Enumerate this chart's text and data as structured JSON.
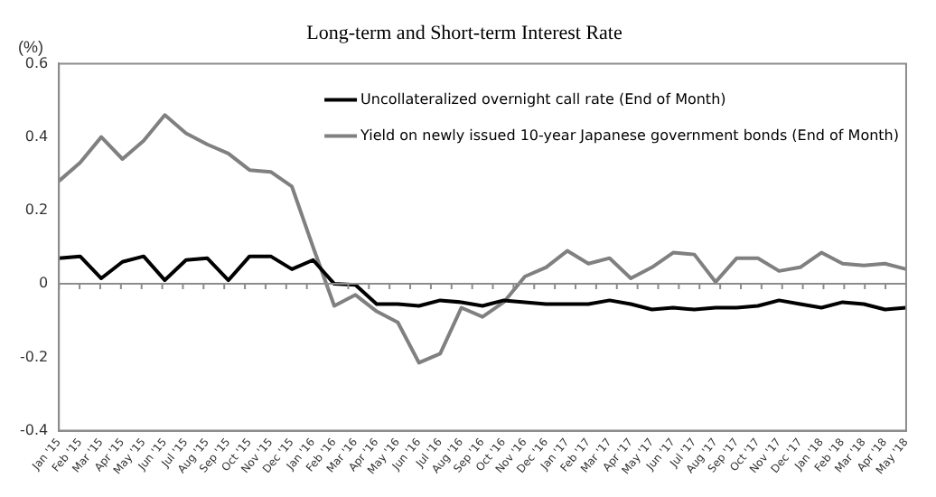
{
  "chart_data": {
    "type": "line",
    "title": "Long-term and Short-term Interest Rate",
    "ylabel": "(%)",
    "categories": [
      "Jan '15",
      "Feb '15",
      "Mar '15",
      "Apr '15",
      "May '15",
      "Jun '15",
      "Jul '15",
      "Aug '15",
      "Sep '15",
      "Oct '15",
      "Nov '15",
      "Dec '15",
      "Jan '16",
      "Feb '16",
      "Mar '16",
      "Apr '16",
      "May '16",
      "Jun '16",
      "Jul '16",
      "Aug '16",
      "Sep '16",
      "Oct '16",
      "Nov '16",
      "Dec '16",
      "Jan '17",
      "Feb '17",
      "Mar '17",
      "Apr '17",
      "May '17",
      "Jun '17",
      "Jul '17",
      "Aug '17",
      "Sep '17",
      "Oct '17",
      "Nov '17",
      "Dec '17",
      "Jan '18",
      "Feb '18",
      "Mar '18",
      "Apr '18",
      "May '18"
    ],
    "series": [
      {
        "name": "Uncollateralized overnight call rate (End of Month)",
        "color": "#000000",
        "values": [
          0.07,
          0.075,
          0.015,
          0.06,
          0.075,
          0.01,
          0.065,
          0.07,
          0.01,
          0.075,
          0.075,
          0.04,
          0.065,
          0.0,
          -0.003,
          -0.055,
          -0.055,
          -0.06,
          -0.045,
          -0.05,
          -0.06,
          -0.045,
          -0.05,
          -0.055,
          -0.055,
          -0.055,
          -0.045,
          -0.055,
          -0.07,
          -0.065,
          -0.07,
          -0.065,
          -0.065,
          -0.06,
          -0.045,
          -0.055,
          -0.065,
          -0.05,
          -0.055,
          -0.07,
          -0.065
        ]
      },
      {
        "name": "Yield on newly issued 10-year Japanese government bonds (End of Month)",
        "color": "#808080",
        "values": [
          0.28,
          0.33,
          0.4,
          0.34,
          0.39,
          0.46,
          0.41,
          0.38,
          0.355,
          0.31,
          0.305,
          0.265,
          0.1,
          -0.06,
          -0.03,
          -0.075,
          -0.105,
          -0.215,
          -0.19,
          -0.065,
          -0.09,
          -0.05,
          0.02,
          0.045,
          0.09,
          0.055,
          0.07,
          0.015,
          0.045,
          0.085,
          0.08,
          0.005,
          0.07,
          0.07,
          0.035,
          0.045,
          0.085,
          0.055,
          0.05,
          0.055,
          0.04
        ]
      }
    ],
    "ylim": [
      -0.4,
      0.6
    ],
    "yticks": [
      {
        "value": -0.4,
        "label": "-0.4"
      },
      {
        "value": -0.2,
        "label": "-0.2"
      },
      {
        "value": 0,
        "label": "0"
      },
      {
        "value": 0.2,
        "label": "0.2"
      },
      {
        "value": 0.4,
        "label": "0.4"
      },
      {
        "value": 0.6,
        "label": "0.6"
      }
    ],
    "ref_lines": [
      {
        "axis": "y",
        "value": 0,
        "color": "#8c8c8c"
      }
    ],
    "legend": "top right",
    "marker": "none",
    "line_style": "solid"
  }
}
